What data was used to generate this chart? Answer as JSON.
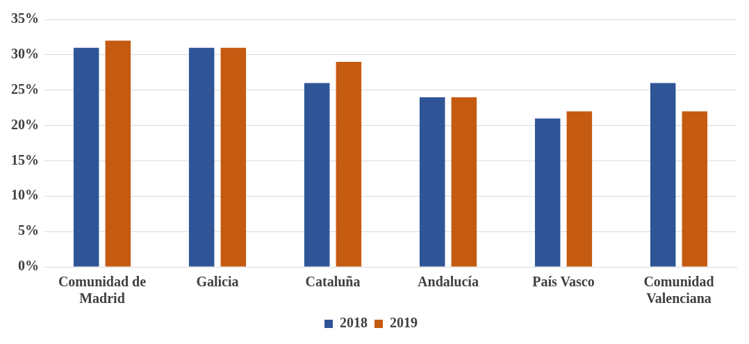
{
  "chart_data": {
    "type": "bar",
    "categories": [
      "Comunidad de Madrid",
      "Galicia",
      "Cataluña",
      "Andalucía",
      "País Vasco",
      "Comunidad Valenciana"
    ],
    "series": [
      {
        "name": "2018",
        "color": "#2f5597",
        "values": [
          31,
          31,
          26,
          24,
          21,
          26
        ]
      },
      {
        "name": "2019",
        "color": "#c55a11",
        "values": [
          32,
          31,
          29,
          24,
          22,
          22
        ]
      }
    ],
    "ylim": [
      0,
      35
    ],
    "yticks": [
      {
        "value": 0,
        "label": "0%"
      },
      {
        "value": 5,
        "label": "5%"
      },
      {
        "value": 10,
        "label": "10%"
      },
      {
        "value": 15,
        "label": "15%"
      },
      {
        "value": 20,
        "label": "20%"
      },
      {
        "value": 25,
        "label": "25%"
      },
      {
        "value": 30,
        "label": "30%"
      },
      {
        "value": 35,
        "label": "35%"
      }
    ],
    "grid": "y",
    "legend": "bottom"
  }
}
